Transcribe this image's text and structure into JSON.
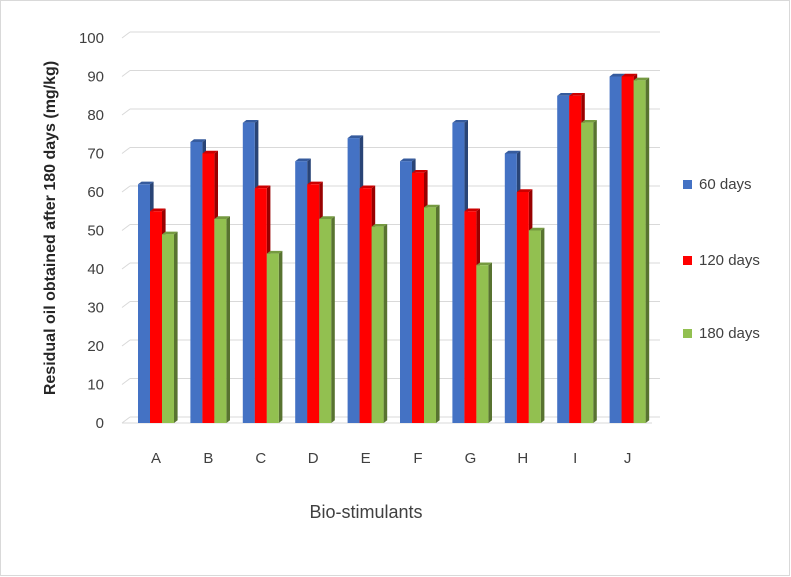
{
  "chart_data": {
    "type": "bar",
    "title": "",
    "xlabel": "Bio-stimulants",
    "ylabel": "Residual oil  obtained after 180 days (mg/kg)",
    "ylim": [
      0,
      100
    ],
    "yticks": [
      0,
      10,
      20,
      30,
      40,
      50,
      60,
      70,
      80,
      90,
      100
    ],
    "grid": true,
    "legend_position": "right",
    "categories": [
      "A",
      "B",
      "C",
      "D",
      "E",
      "F",
      "G",
      "H",
      "I",
      "J"
    ],
    "series": [
      {
        "name": "60 days",
        "color": "#4472c4",
        "values": [
          62,
          73,
          78,
          68,
          74,
          68,
          78,
          70,
          85,
          90
        ]
      },
      {
        "name": "120 days",
        "color": "#ff0000",
        "values": [
          55,
          70,
          61,
          62,
          61,
          65,
          55,
          60,
          85,
          90
        ]
      },
      {
        "name": "180 days",
        "color": "#92c050",
        "values": [
          49,
          53,
          44,
          53,
          51,
          56,
          41,
          50,
          78,
          89
        ]
      }
    ]
  }
}
